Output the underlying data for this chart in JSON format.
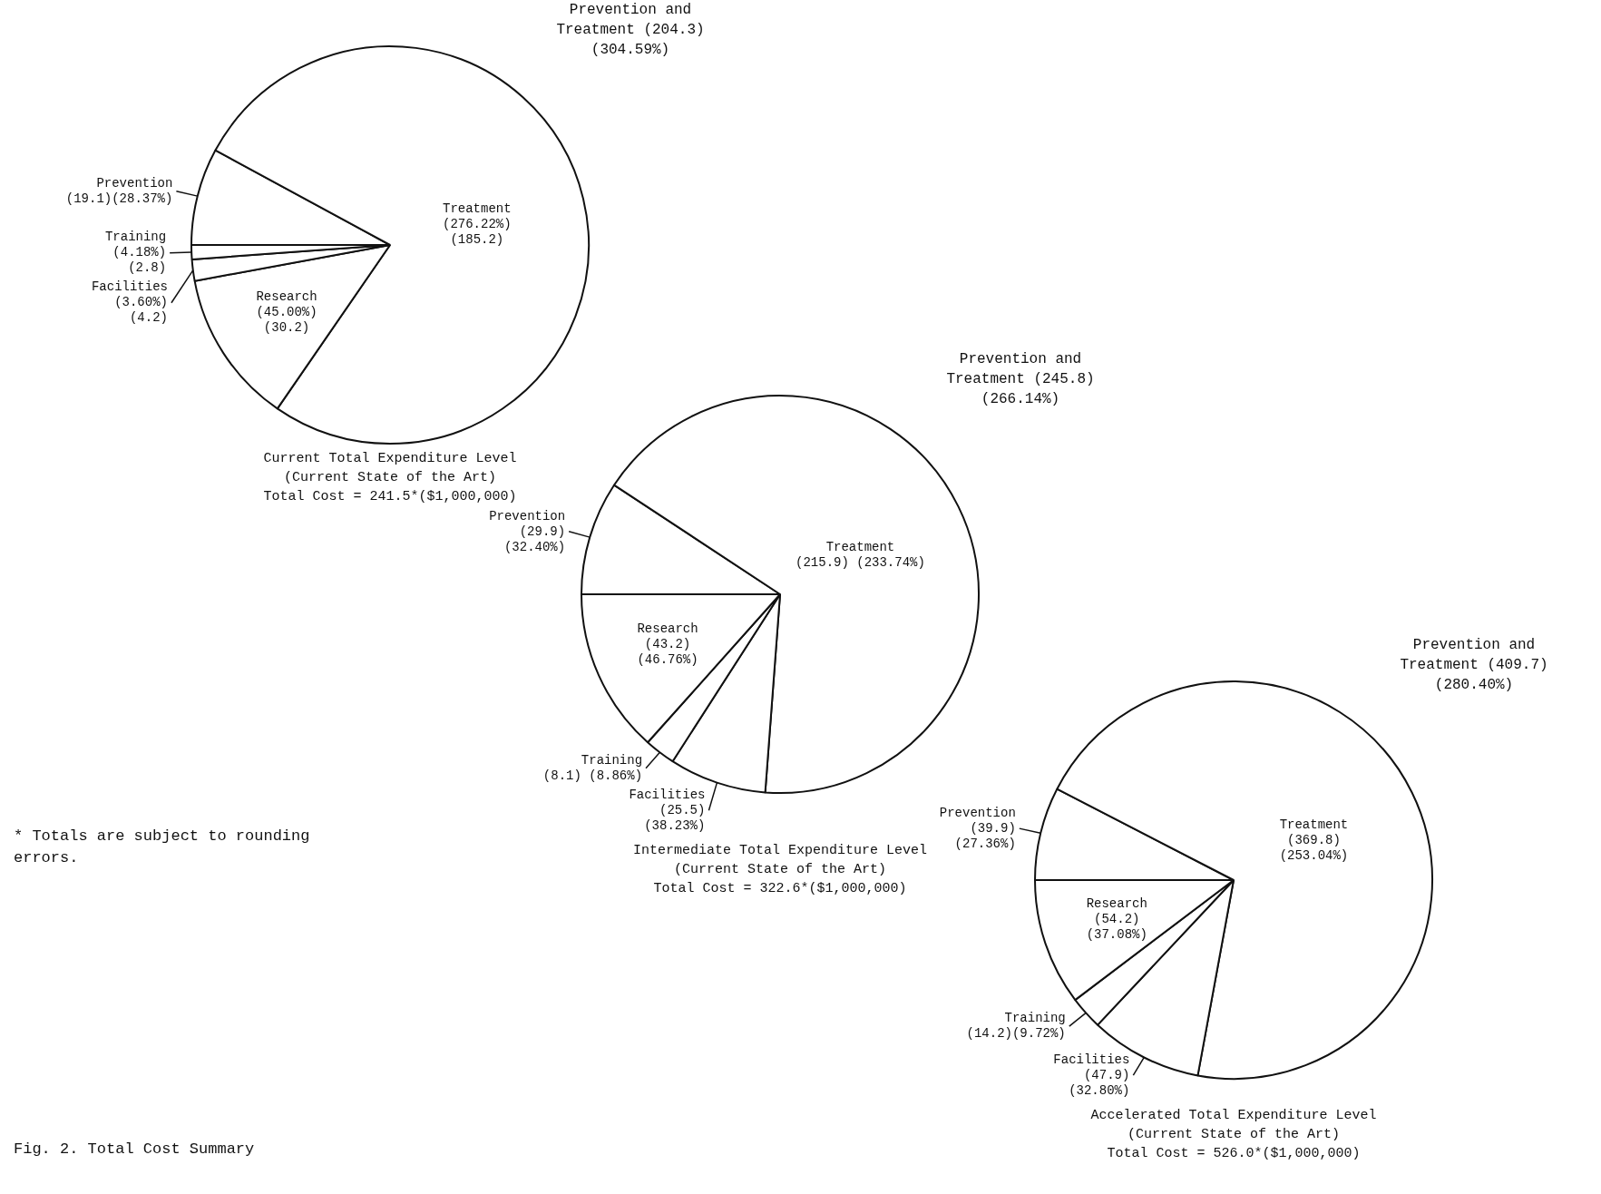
{
  "chart_data": [
    {
      "type": "pie",
      "title": "Current Total Expenditure Level",
      "subtitle": "(Current State of the Art)",
      "categories": [
        "Prevention",
        "Treatment",
        "Research",
        "Facilities",
        "Training"
      ],
      "values": [
        19.1,
        185.2,
        30.2,
        4.2,
        2.8
      ],
      "colors": [
        "#ffffff",
        "#ffffff",
        "#ffffff",
        "#ffffff",
        "#ffffff"
      ],
      "value_labels": [
        "(19.1)(28.37%)",
        "(276.22%)\n(185.2)",
        "(45.00%)\n(30.2)",
        "(3.60%)\n(4.2)",
        "(4.18%)\n(2.8)"
      ],
      "annotations": [
        "Prevention and Treatment (204.3) (304.59%)",
        "Total Cost = 241.5*($1,000,000)",
        "* Totals are subject to rounding errors.",
        "Fig. 2. Total Cost Summary"
      ]
    },
    {
      "type": "pie",
      "title": "Intermediate Total Expenditure Level",
      "subtitle": "(Current State of the Art)",
      "categories": [
        "Prevention",
        "Treatment",
        "Facilities",
        "Training",
        "Research"
      ],
      "values": [
        29.9,
        215.9,
        25.5,
        8.1,
        43.2
      ],
      "colors": [
        "#ffffff",
        "#ffffff",
        "#ffffff",
        "#ffffff",
        "#ffffff"
      ],
      "value_labels": [
        "(29.9)\n(32.40%)",
        "(215.9) (233.74%)",
        "(25.5)\n(38.23%)",
        "(8.1) (8.86%)",
        "(43.2)\n(46.76%)"
      ],
      "annotations": [
        "Prevention and Treatment (245.8) (266.14%)",
        "Total Cost = 322.6*($1,000,000)"
      ]
    },
    {
      "type": "pie",
      "title": "Accelerated Total Expenditure Level",
      "subtitle": "(Current State of the Art)",
      "categories": [
        "Prevention",
        "Treatment",
        "Facilities",
        "Training",
        "Research"
      ],
      "values": [
        39.9,
        369.8,
        47.9,
        14.2,
        54.2
      ],
      "colors": [
        "#ffffff",
        "#ffffff",
        "#ffffff",
        "#ffffff",
        "#ffffff"
      ],
      "value_labels": [
        "(39.9)\n(27.36%)",
        "(369.8)\n(253.04%)",
        "(47.9)\n(32.80%)",
        "(14.2)(9.72%)",
        "(54.2)\n(37.08%)"
      ],
      "annotations": [
        "Prevention and Treatment (409.7) (280.40%)",
        "Total Cost = 526.0*($1,000,000)"
      ]
    }
  ]
}
